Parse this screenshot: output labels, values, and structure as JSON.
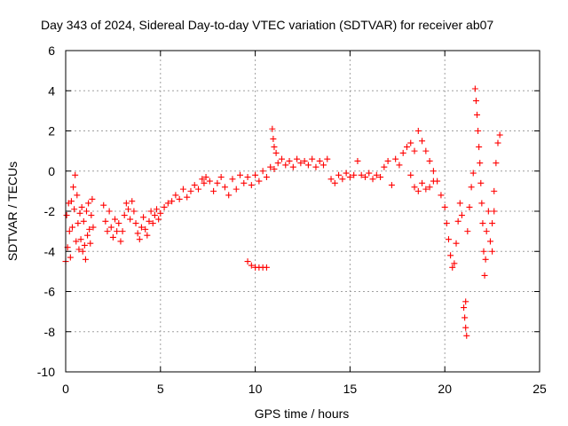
{
  "chart_data": {
    "type": "scatter",
    "title": "Day 343 of 2024, Sidereal Day-to-day VTEC variation (SDTVAR) for receiver ab07",
    "xlabel": "GPS time / hours",
    "ylabel": "SDTVAR / TECUs",
    "xlim": [
      0,
      25
    ],
    "ylim": [
      -10,
      6
    ],
    "xticks": [
      0,
      5,
      10,
      15,
      20,
      25
    ],
    "xtick_labels": [
      "0",
      "5",
      "10",
      "15",
      "20",
      "25"
    ],
    "yticks": [
      -10,
      -8,
      -6,
      -4,
      -2,
      0,
      2,
      4,
      6
    ],
    "ytick_labels": [
      "-10",
      "-8",
      "-6",
      "-4",
      "-2",
      "0",
      "2",
      "4",
      "6"
    ],
    "grid": true,
    "marker": "+",
    "series": [
      {
        "name": "SDTVAR",
        "color": "#ff0000",
        "points": [
          [
            0.0,
            -4.5
          ],
          [
            0.05,
            -2.2
          ],
          [
            0.1,
            -3.8
          ],
          [
            0.15,
            -1.6
          ],
          [
            0.2,
            -3.0
          ],
          [
            0.25,
            -4.3
          ],
          [
            0.3,
            -1.5
          ],
          [
            0.35,
            -2.8
          ],
          [
            0.4,
            -0.8
          ],
          [
            0.45,
            -1.9
          ],
          [
            0.5,
            -0.2
          ],
          [
            0.55,
            -3.5
          ],
          [
            0.6,
            -1.2
          ],
          [
            0.65,
            -2.6
          ],
          [
            0.7,
            -3.9
          ],
          [
            0.75,
            -2.1
          ],
          [
            0.8,
            -3.4
          ],
          [
            0.85,
            -1.8
          ],
          [
            0.9,
            -4.0
          ],
          [
            0.95,
            -2.5
          ],
          [
            1.0,
            -3.7
          ],
          [
            1.05,
            -4.4
          ],
          [
            1.1,
            -2.0
          ],
          [
            1.15,
            -3.2
          ],
          [
            1.2,
            -1.6
          ],
          [
            1.25,
            -2.9
          ],
          [
            1.3,
            -3.6
          ],
          [
            1.35,
            -2.2
          ],
          [
            1.4,
            -1.4
          ],
          [
            1.45,
            -2.8
          ],
          [
            2.0,
            -1.7
          ],
          [
            2.1,
            -2.5
          ],
          [
            2.2,
            -3.0
          ],
          [
            2.3,
            -2.0
          ],
          [
            2.4,
            -2.8
          ],
          [
            2.5,
            -3.3
          ],
          [
            2.6,
            -2.4
          ],
          [
            2.7,
            -3.0
          ],
          [
            2.8,
            -2.6
          ],
          [
            2.9,
            -3.5
          ],
          [
            3.0,
            -3.0
          ],
          [
            3.1,
            -2.2
          ],
          [
            3.2,
            -1.6
          ],
          [
            3.3,
            -1.9
          ],
          [
            3.4,
            -2.4
          ],
          [
            3.5,
            -1.5
          ],
          [
            3.6,
            -2.0
          ],
          [
            3.7,
            -2.6
          ],
          [
            3.8,
            -3.1
          ],
          [
            3.9,
            -3.4
          ],
          [
            4.0,
            -2.8
          ],
          [
            4.1,
            -2.3
          ],
          [
            4.2,
            -2.9
          ],
          [
            4.3,
            -3.2
          ],
          [
            4.4,
            -2.5
          ],
          [
            4.5,
            -2.0
          ],
          [
            4.6,
            -2.6
          ],
          [
            4.7,
            -2.2
          ],
          [
            4.8,
            -1.9
          ],
          [
            4.9,
            -2.4
          ],
          [
            5.0,
            -2.1
          ],
          [
            5.2,
            -1.8
          ],
          [
            5.4,
            -1.6
          ],
          [
            5.6,
            -1.5
          ],
          [
            5.8,
            -1.2
          ],
          [
            6.0,
            -1.4
          ],
          [
            6.2,
            -0.9
          ],
          [
            6.4,
            -1.3
          ],
          [
            6.6,
            -1.0
          ],
          [
            6.8,
            -0.7
          ],
          [
            7.0,
            -0.9
          ],
          [
            7.2,
            -0.4
          ],
          [
            7.3,
            -0.6
          ],
          [
            7.4,
            -0.3
          ],
          [
            7.6,
            -0.5
          ],
          [
            7.8,
            -1.0
          ],
          [
            8.0,
            -0.6
          ],
          [
            8.2,
            -0.3
          ],
          [
            8.4,
            -0.8
          ],
          [
            8.6,
            -1.2
          ],
          [
            8.8,
            -0.4
          ],
          [
            9.0,
            -0.9
          ],
          [
            9.2,
            -0.2
          ],
          [
            9.4,
            -0.6
          ],
          [
            9.6,
            -0.3
          ],
          [
            9.8,
            -0.7
          ],
          [
            10.0,
            -0.2
          ],
          [
            10.2,
            -0.5
          ],
          [
            10.4,
            0.0
          ],
          [
            10.6,
            -0.3
          ],
          [
            10.8,
            0.2
          ],
          [
            9.6,
            -4.5
          ],
          [
            9.8,
            -4.7
          ],
          [
            10.0,
            -4.8
          ],
          [
            10.2,
            -4.8
          ],
          [
            10.4,
            -4.8
          ],
          [
            10.6,
            -4.8
          ],
          [
            10.9,
            2.1
          ],
          [
            10.95,
            1.6
          ],
          [
            11.0,
            1.2
          ],
          [
            11.1,
            0.9
          ],
          [
            11.0,
            0.1
          ],
          [
            11.2,
            0.4
          ],
          [
            11.4,
            0.6
          ],
          [
            11.6,
            0.3
          ],
          [
            11.8,
            0.5
          ],
          [
            12.0,
            0.2
          ],
          [
            12.2,
            0.6
          ],
          [
            12.4,
            0.4
          ],
          [
            12.6,
            0.5
          ],
          [
            12.8,
            0.3
          ],
          [
            13.0,
            0.6
          ],
          [
            13.2,
            0.2
          ],
          [
            13.4,
            0.5
          ],
          [
            13.6,
            0.3
          ],
          [
            13.8,
            0.6
          ],
          [
            14.0,
            -0.4
          ],
          [
            14.2,
            -0.6
          ],
          [
            14.4,
            -0.2
          ],
          [
            14.6,
            -0.4
          ],
          [
            14.8,
            -0.1
          ],
          [
            15.0,
            -0.3
          ],
          [
            15.2,
            -0.2
          ],
          [
            15.4,
            0.5
          ],
          [
            15.6,
            -0.2
          ],
          [
            15.8,
            -0.3
          ],
          [
            16.0,
            -0.1
          ],
          [
            16.2,
            -0.4
          ],
          [
            16.4,
            -0.2
          ],
          [
            16.6,
            -0.3
          ],
          [
            16.8,
            0.2
          ],
          [
            17.0,
            0.5
          ],
          [
            17.2,
            -0.7
          ],
          [
            17.4,
            0.6
          ],
          [
            17.6,
            0.3
          ],
          [
            17.8,
            0.9
          ],
          [
            18.0,
            1.2
          ],
          [
            18.2,
            1.4
          ],
          [
            18.4,
            1.0
          ],
          [
            18.6,
            2.0
          ],
          [
            18.8,
            1.5
          ],
          [
            19.0,
            1.0
          ],
          [
            19.2,
            0.5
          ],
          [
            19.4,
            0.0
          ],
          [
            19.6,
            -0.5
          ],
          [
            19.8,
            -1.2
          ],
          [
            20.0,
            -1.8
          ],
          [
            18.2,
            -0.2
          ],
          [
            18.4,
            -0.8
          ],
          [
            18.6,
            -1.0
          ],
          [
            18.8,
            -0.6
          ],
          [
            19.0,
            -0.9
          ],
          [
            19.2,
            -0.8
          ],
          [
            19.4,
            -0.5
          ],
          [
            20.1,
            -2.6
          ],
          [
            20.2,
            -3.4
          ],
          [
            20.3,
            -4.2
          ],
          [
            20.4,
            -4.8
          ],
          [
            20.5,
            -4.6
          ],
          [
            20.6,
            -3.6
          ],
          [
            20.7,
            -2.5
          ],
          [
            20.8,
            -1.6
          ],
          [
            20.9,
            -2.2
          ],
          [
            21.0,
            -6.8
          ],
          [
            21.05,
            -7.3
          ],
          [
            21.1,
            -7.8
          ],
          [
            21.15,
            -8.2
          ],
          [
            21.1,
            -6.5
          ],
          [
            21.2,
            -3.0
          ],
          [
            21.3,
            -1.8
          ],
          [
            21.4,
            -0.8
          ],
          [
            21.5,
            -0.1
          ],
          [
            21.6,
            4.1
          ],
          [
            21.65,
            3.5
          ],
          [
            21.7,
            2.8
          ],
          [
            21.75,
            2.0
          ],
          [
            21.8,
            1.2
          ],
          [
            21.85,
            0.4
          ],
          [
            21.9,
            -0.6
          ],
          [
            21.95,
            -1.6
          ],
          [
            22.0,
            -2.6
          ],
          [
            22.05,
            -4.0
          ],
          [
            22.1,
            -5.2
          ],
          [
            22.15,
            -4.4
          ],
          [
            22.2,
            -3.0
          ],
          [
            22.3,
            -2.0
          ],
          [
            22.4,
            -3.5
          ],
          [
            22.5,
            -2.6
          ],
          [
            22.6,
            -1.0
          ],
          [
            22.7,
            0.4
          ],
          [
            22.8,
            1.4
          ],
          [
            22.9,
            1.8
          ],
          [
            22.6,
            -2.0
          ],
          [
            22.5,
            -4.0
          ]
        ]
      }
    ]
  }
}
